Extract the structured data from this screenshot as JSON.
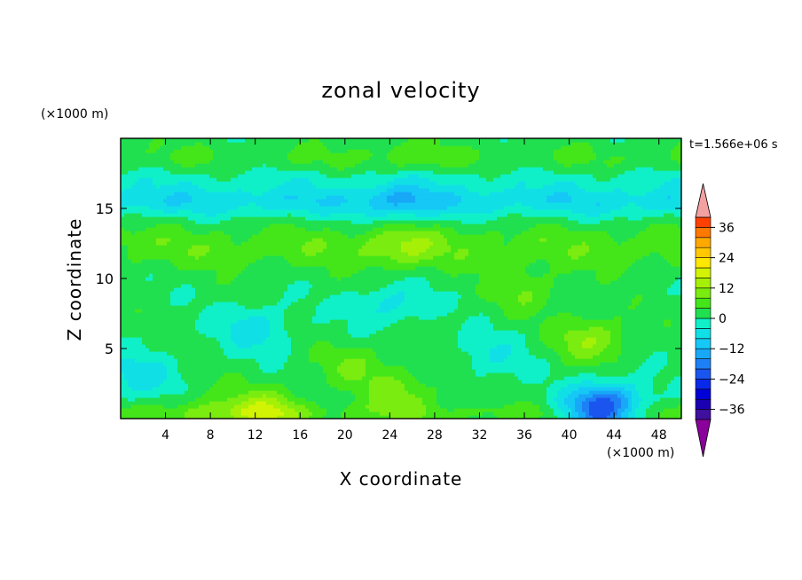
{
  "chart_data": {
    "type": "heatmap",
    "title": "zonal velocity",
    "xlabel": "X coordinate",
    "ylabel": "Z coordinate",
    "x_unit_label": "(×1000 m)",
    "z_unit_label": "(×1000 m)",
    "time_label": "t=1.566e+06 s",
    "xlim": [
      0,
      50
    ],
    "ylim": [
      0,
      20
    ],
    "x_ticks": [
      4,
      8,
      12,
      16,
      20,
      24,
      28,
      32,
      36,
      40,
      44,
      48
    ],
    "x_tick_labels": [
      "4",
      "8",
      "12",
      "16",
      "20",
      "24",
      "28",
      "32",
      "36",
      "40",
      "44",
      "48"
    ],
    "y_ticks": [
      5,
      10,
      15
    ],
    "y_tick_labels": [
      "5",
      "10",
      "15"
    ],
    "grid": false,
    "legend": "right",
    "colorbar": {
      "min": -40,
      "max": 40,
      "step": 4,
      "tick_values": [
        36,
        24,
        12,
        0,
        -12,
        -24,
        -36
      ],
      "tick_labels": [
        "36",
        "24",
        "12",
        "0",
        "−12",
        "−24",
        "−36"
      ],
      "over_color": "#f2a0a0",
      "under_color": "#8a009a",
      "colors": [
        "#3f0f9e",
        "#1a00b0",
        "#0000d8",
        "#0828ea",
        "#1a55f0",
        "#1e80f5",
        "#18a8f8",
        "#15c8f5",
        "#10e0e6",
        "#0ff0c8",
        "#20e050",
        "#44e61a",
        "#7aec10",
        "#a6f008",
        "#d2f404",
        "#ffe800",
        "#ffc800",
        "#ffa800",
        "#ff7800",
        "#ff4000"
      ]
    },
    "features": [
      {
        "x": 8,
        "z": 0.7,
        "value": 5
      },
      {
        "x": 13,
        "z": 0.6,
        "value": 12
      },
      {
        "x": 21,
        "z": 3.8,
        "value": 6
      },
      {
        "x": 25,
        "z": 1.8,
        "value": 8
      },
      {
        "x": 42.5,
        "z": 0.5,
        "value": -20
      },
      {
        "x": 44,
        "z": 1.3,
        "value": -9
      },
      {
        "x": 42,
        "z": 5.7,
        "value": 10
      },
      {
        "x": 12,
        "z": 6.5,
        "value": -8
      },
      {
        "x": 24,
        "z": 8.2,
        "value": -7
      },
      {
        "x": 1.5,
        "z": 3.0,
        "value": -8
      },
      {
        "x": 25,
        "z": 15.5,
        "value": -7
      },
      {
        "x": 25,
        "z": 12.3,
        "value": 7
      },
      {
        "x": 36,
        "z": 9.2,
        "value": 6
      },
      {
        "x": 25,
        "z": 18.7,
        "value": 3
      },
      {
        "x": 33,
        "z": 4.5,
        "value": -5
      }
    ]
  }
}
